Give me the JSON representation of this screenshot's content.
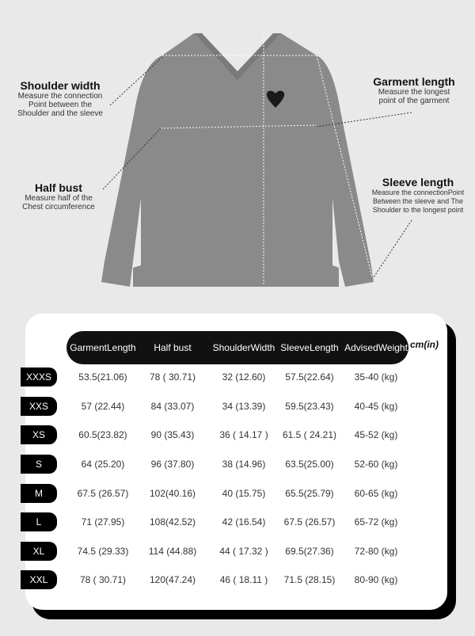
{
  "annotations": {
    "shoulder_width": {
      "title": "Shoulder width",
      "desc": [
        "Measure the connection",
        "Point between the",
        "Shoulder and the sleeve"
      ]
    },
    "half_bust": {
      "title": "Half bust",
      "desc": [
        "Measure half of the",
        "Chest circumference"
      ]
    },
    "garment_length": {
      "title": "Garment length",
      "desc": [
        "Measure the longest",
        "point of the garment"
      ]
    },
    "sleeve_length": {
      "title": "Sleeve length",
      "desc": [
        "Measure the connectionPoint",
        "Between the sleeve and The",
        "Shoulder to the longest point"
      ]
    }
  },
  "colors": {
    "background": "#e9e9e9",
    "sweater": "#8a8a8a",
    "header": "#111111",
    "heart": "#1a1a1a"
  },
  "table": {
    "unit": "cm(in)",
    "headers": [
      [
        "Garment",
        "Length"
      ],
      [
        "Half bust"
      ],
      [
        "Shoulder",
        "Width"
      ],
      [
        "Sleeve",
        "Length"
      ],
      [
        "Advised",
        "Weight"
      ]
    ],
    "rows": [
      {
        "size": "XXXS",
        "values": [
          "53.5(21.06)",
          "78 ( 30.71)",
          "32 (12.60)",
          "57.5(22.64)",
          "35-40 (kg)"
        ]
      },
      {
        "size": "XXS",
        "values": [
          "57  (22.44)",
          "84 (33.07)",
          "34 (13.39)",
          "59.5(23.43)",
          "40-45 (kg)"
        ]
      },
      {
        "size": "XS",
        "values": [
          "60.5(23.82)",
          "90 (35.43)",
          "36 ( 14.17 )",
          "61.5 ( 24.21)",
          "45-52 (kg)"
        ]
      },
      {
        "size": "S",
        "values": [
          "64  (25.20)",
          "96 (37.80)",
          "38 (14.96)",
          "63.5(25.00)",
          "52-60 (kg)"
        ]
      },
      {
        "size": "M",
        "values": [
          "67.5 (26.57)",
          "102(40.16)",
          "40 (15.75)",
          "65.5(25.79)",
          "60-65 (kg)"
        ]
      },
      {
        "size": "L",
        "values": [
          "71  (27.95)",
          "108(42.52)",
          "42 (16.54)",
          "67.5 (26.57)",
          "65-72 (kg)"
        ]
      },
      {
        "size": "XL",
        "values": [
          "74.5 (29.33)",
          "114 (44.88)",
          "44 ( 17.32 )",
          "69.5(27.36)",
          "72-80 (kg)"
        ]
      },
      {
        "size": "XXL",
        "values": [
          "78  ( 30.71)",
          "120(47.24)",
          "46 ( 18.11 )",
          "71.5 (28.15)",
          "80-90 (kg)"
        ]
      }
    ]
  }
}
